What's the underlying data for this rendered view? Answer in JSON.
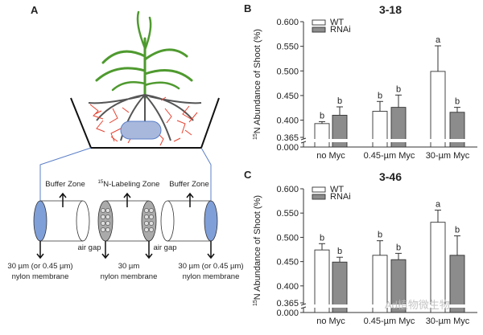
{
  "panels": {
    "a": "A",
    "b": "B",
    "c": "C"
  },
  "diagram": {
    "buffer_zone_left": "Buffer Zone",
    "labeling_zone_sup": "15",
    "labeling_zone": "N-Labeling Zone",
    "buffer_zone_right": "Buffer Zone",
    "air_gap_left": "air gap",
    "air_gap_right": "air gap",
    "membrane_left_1": "30 µm (or 0.45 µm)",
    "membrane_left_2": "nylon membrane",
    "membrane_mid_1": "30 µm",
    "membrane_mid_2": "nylon membrane",
    "membrane_right_1": "30 µm (or 0.45 µm)",
    "membrane_right_2": "nylon membrane"
  },
  "watermark": "Ad植物微生物",
  "colors": {
    "wt": "#ffffff",
    "rnai": "#8c8c8c",
    "membrane": "#7f9fd9",
    "root": "#e8412f",
    "leaf": "#4f9a2f",
    "line": "#5b7fc7"
  },
  "chart_data": [
    {
      "type": "bar",
      "title": "3-18",
      "ylabel_sup": "15",
      "ylabel": "N Abundance of Shoot (%)",
      "categories": [
        "no Myc",
        "0.45-µm Myc",
        "30-µm Myc"
      ],
      "yticks": [
        "0.000",
        "0.365",
        "0.400",
        "0.450",
        "0.500",
        "0.550",
        "0.600"
      ],
      "ytick_values": [
        0,
        0.365,
        0.4,
        0.45,
        0.5,
        0.55,
        0.6
      ],
      "ylim": [
        0,
        0.6
      ],
      "axis_break": [
        0,
        0.365
      ],
      "legend": [
        "WT",
        "RNAi"
      ],
      "legend_position": "top-left",
      "series": [
        {
          "name": "WT",
          "values": [
            0.393,
            0.418,
            0.499
          ],
          "errors": [
            0.004,
            0.02,
            0.052
          ],
          "letters": [
            "b",
            "b",
            "a"
          ]
        },
        {
          "name": "RNAi",
          "values": [
            0.41,
            0.426,
            0.416
          ],
          "errors": [
            0.017,
            0.025,
            0.01
          ],
          "letters": [
            "b",
            "b",
            "b"
          ]
        }
      ]
    },
    {
      "type": "bar",
      "title": "3-46",
      "ylabel_sup": "15",
      "ylabel": "N Abundance of Shoot (%)",
      "categories": [
        "no Myc",
        "0.45-µm Myc",
        "30-µm Myc"
      ],
      "yticks": [
        "0.000",
        "0.365",
        "0.400",
        "0.450",
        "0.500",
        "0.550",
        "0.600"
      ],
      "ytick_values": [
        0,
        0.365,
        0.4,
        0.45,
        0.5,
        0.55,
        0.6
      ],
      "ylim": [
        0,
        0.6
      ],
      "axis_break": [
        0,
        0.365
      ],
      "legend": [
        "WT",
        "RNAi"
      ],
      "legend_position": "top-left",
      "series": [
        {
          "name": "WT",
          "values": [
            0.474,
            0.463,
            0.531
          ],
          "errors": [
            0.013,
            0.03,
            0.025
          ],
          "letters": [
            "b",
            "b",
            "a"
          ]
        },
        {
          "name": "RNAi",
          "values": [
            0.449,
            0.454,
            0.463
          ],
          "errors": [
            0.01,
            0.013,
            0.04
          ],
          "letters": [
            "b",
            "b",
            "b"
          ]
        }
      ]
    }
  ]
}
